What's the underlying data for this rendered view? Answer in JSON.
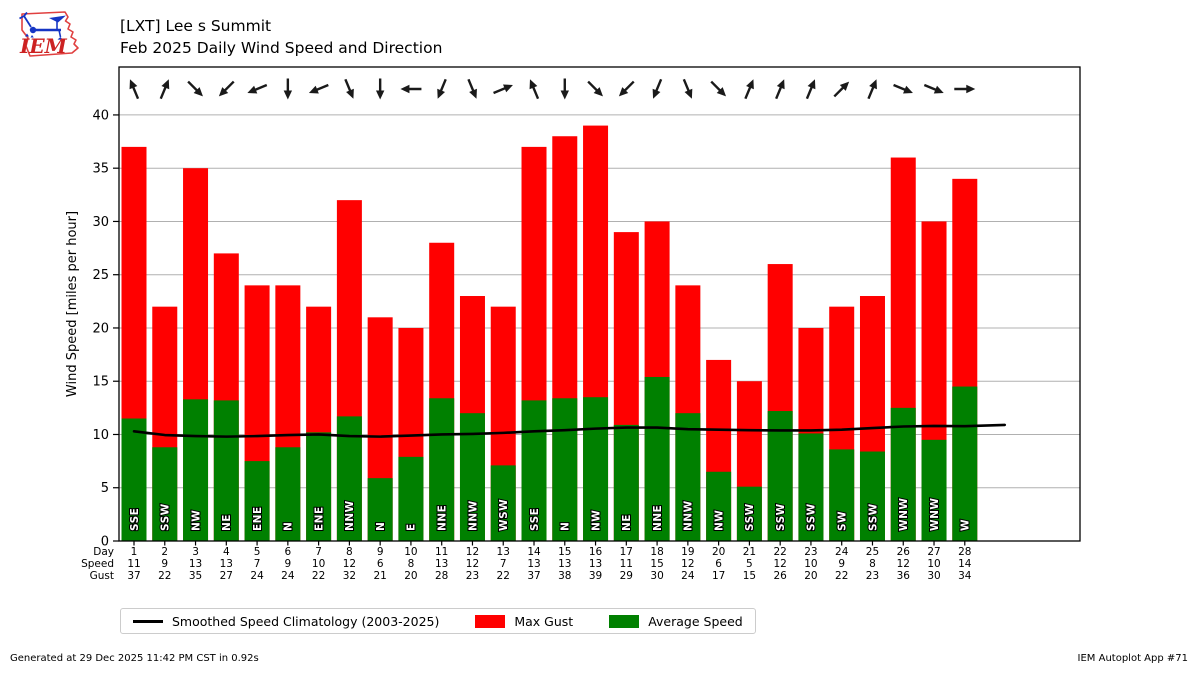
{
  "header": {
    "title_line1": "[LXT] Lee s Summit",
    "title_line2": "Feb 2025 Daily Wind Speed and Direction",
    "logo_text": "IEM"
  },
  "chart_data": {
    "type": "bar",
    "title": "Feb 2025 Daily Wind Speed and Direction",
    "xlabel": "",
    "ylabel": "Wind Speed [miles per hour]",
    "ylim": [
      0,
      44.5
    ],
    "yticks": [
      0,
      5,
      10,
      15,
      20,
      25,
      30,
      35,
      40
    ],
    "grid": true,
    "legend_position": "bottom",
    "days": [
      1,
      2,
      3,
      4,
      5,
      6,
      7,
      8,
      9,
      10,
      11,
      12,
      13,
      14,
      15,
      16,
      17,
      18,
      19,
      20,
      21,
      22,
      23,
      24,
      25,
      26,
      27,
      28
    ],
    "series": [
      {
        "name": "Max Gust",
        "color": "#ff0000",
        "values": [
          37,
          22,
          35,
          27,
          24,
          24,
          22,
          32,
          21,
          20,
          28,
          23,
          22,
          37,
          38,
          39,
          29,
          30,
          24,
          17,
          15,
          26,
          20,
          22,
          23,
          36,
          30,
          34
        ]
      },
      {
        "name": "Average Speed",
        "color": "#008000",
        "values": [
          11.5,
          8.8,
          13.3,
          13.2,
          7.5,
          8.8,
          10.2,
          11.7,
          5.9,
          7.9,
          13.4,
          12.0,
          7.1,
          13.2,
          13.4,
          13.5,
          10.9,
          15.4,
          12.0,
          6.5,
          5.1,
          12.2,
          10.1,
          8.6,
          8.4,
          12.5,
          9.5,
          14.5
        ]
      }
    ],
    "wind_directions": [
      "SSE",
      "SSW",
      "NW",
      "NE",
      "ENE",
      "N",
      "ENE",
      "NNW",
      "N",
      "E",
      "NNE",
      "NNW",
      "WSW",
      "SSE",
      "N",
      "NW",
      "NE",
      "NNE",
      "NNW",
      "NW",
      "SSW",
      "SSW",
      "SSW",
      "SW",
      "SSW",
      "WNW",
      "WNW",
      "W"
    ],
    "climatology": {
      "name": "Smoothed Speed Climatology (2003-2025)",
      "color": "#000000",
      "values": [
        10.3,
        9.95,
        9.85,
        9.8,
        9.85,
        9.95,
        10.0,
        9.85,
        9.8,
        9.9,
        10.0,
        10.05,
        10.15,
        10.3,
        10.4,
        10.55,
        10.65,
        10.65,
        10.5,
        10.45,
        10.4,
        10.38,
        10.38,
        10.45,
        10.6,
        10.75,
        10.8,
        10.78
      ],
      "end_extension_value": 10.9
    },
    "x_table": {
      "row_labels": [
        "Day",
        "Speed",
        "Gust"
      ],
      "day": [
        1,
        2,
        3,
        4,
        5,
        6,
        7,
        8,
        9,
        10,
        11,
        12,
        13,
        14,
        15,
        16,
        17,
        18,
        19,
        20,
        21,
        22,
        23,
        24,
        25,
        26,
        27,
        28
      ],
      "speed": [
        11,
        9,
        13,
        13,
        7,
        9,
        10,
        12,
        6,
        8,
        13,
        12,
        7,
        13,
        13,
        13,
        11,
        15,
        12,
        6,
        5,
        12,
        10,
        9,
        8,
        12,
        10,
        14
      ],
      "gust": [
        37,
        22,
        35,
        27,
        24,
        24,
        22,
        32,
        21,
        20,
        28,
        23,
        22,
        37,
        38,
        39,
        29,
        30,
        24,
        17,
        15,
        26,
        20,
        22,
        23,
        36,
        30,
        34
      ]
    },
    "colors": {
      "grid": "#b0b0b0",
      "axis": "#000000",
      "arrow": "#1a1a1a"
    }
  },
  "legend": {
    "climatology_label": "Smoothed Speed Climatology (2003-2025)",
    "max_gust_label": "Max Gust",
    "avg_speed_label": "Average Speed",
    "max_gust_color": "#ff0000",
    "avg_speed_color": "#008000"
  },
  "footer": {
    "left": "Generated at 29 Dec 2025 11:42 PM CST in 0.92s",
    "right": "IEM Autoplot App #71"
  }
}
